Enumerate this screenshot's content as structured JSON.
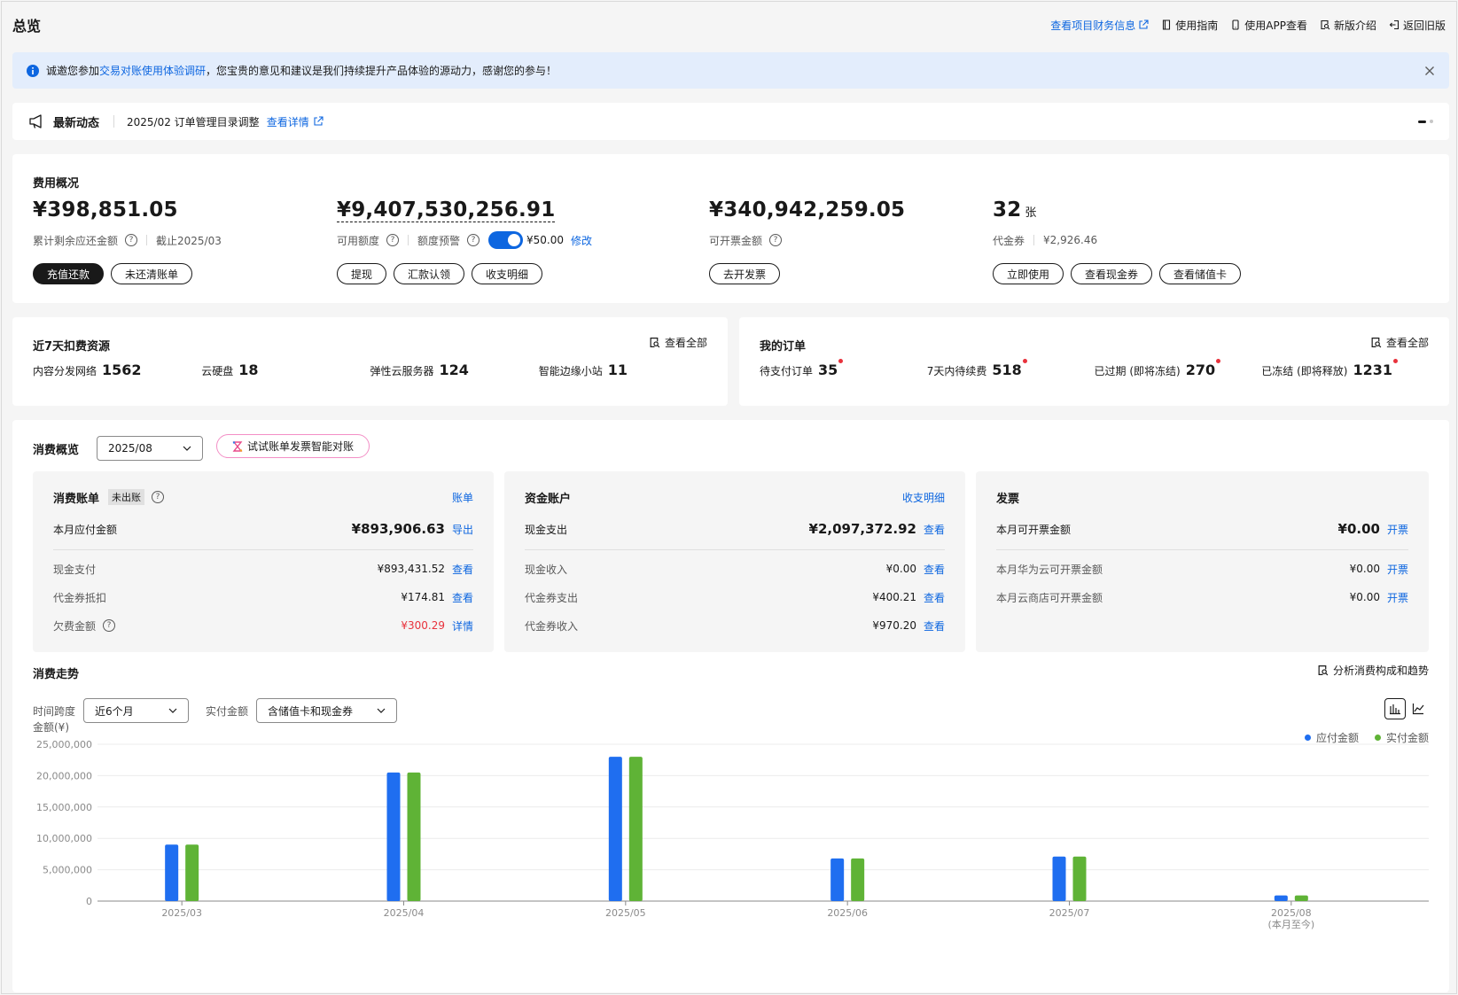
{
  "page": {
    "title": "总览"
  },
  "header_links": {
    "finance_info": "查看项目财务信息",
    "guide": "使用指南",
    "app": "使用APP查看",
    "new_intro": "新版介绍",
    "old_version": "返回旧版"
  },
  "notice": {
    "prefix": "诚邀您参加",
    "link": "交易对账使用体验调研",
    "suffix": "，您宝贵的意见和建议是我们持续提升产品体验的源动力，感谢您的参与！"
  },
  "news": {
    "title": "最新动态",
    "text": "2025/02 订单管理目录调整",
    "more": "查看详情"
  },
  "fee_overview": {
    "title": "费用概况",
    "balance": {
      "amount": "¥398,851.05",
      "label": "累计剩余应还金额",
      "date": "截止2025/03",
      "btn_recharge": "充值还款",
      "btn_unpaid": "未还清账单"
    },
    "credit": {
      "amount": "¥9,407,530,256.91",
      "label": "可用额度",
      "alert_label": "额度预警",
      "alert_value": "¥50.00",
      "edit": "修改",
      "alert_enabled": true,
      "btn_withdraw": "提现",
      "btn_remit": "汇款认领",
      "btn_detail": "收支明细"
    },
    "invoice": {
      "amount": "¥340,942,259.05",
      "label": "可开票金额",
      "btn_invoice": "去开发票"
    },
    "coupon": {
      "amount": "32",
      "unit": "张",
      "label": "代金券",
      "value": "¥2,926.46",
      "btn_use": "立即使用",
      "btn_cash": "查看现金券",
      "btn_card": "查看储值卡"
    }
  },
  "resources": {
    "title": "近7天扣费资源",
    "view_all": "查看全部",
    "items": [
      {
        "label": "内容分发网络",
        "value": "1562"
      },
      {
        "label": "云硬盘",
        "value": "18"
      },
      {
        "label": "弹性云服务器",
        "value": "124"
      },
      {
        "label": "智能边缘小站",
        "value": "11"
      }
    ]
  },
  "orders": {
    "title": "我的订单",
    "view_all": "查看全部",
    "items": [
      {
        "label": "待支付订单",
        "value": "35"
      },
      {
        "label": "7天内待续费",
        "value": "518"
      },
      {
        "label": "已过期 (即将冻结)",
        "value": "270"
      },
      {
        "label": "已冻结 (即将释放)",
        "value": "1231"
      }
    ]
  },
  "consumption": {
    "title": "消费概览",
    "month": "2025/08",
    "ai_button": "试试账单发票智能对账",
    "bill": {
      "title": "消费账单",
      "badge": "未出账",
      "link": "账单",
      "main_label": "本月应付金额",
      "main_amount": "¥893,906.63",
      "main_link": "导出",
      "rows": [
        {
          "label": "现金支付",
          "amount": "¥893,431.52",
          "link": "查看"
        },
        {
          "label": "代金券抵扣",
          "amount": "¥174.81",
          "link": "查看"
        },
        {
          "label": "欠费金额",
          "amount": "¥300.29",
          "link": "详情"
        }
      ]
    },
    "fund": {
      "title": "资金账户",
      "link": "收支明细",
      "main_label": "现金支出",
      "main_amount": "¥2,097,372.92",
      "main_link": "查看",
      "rows": [
        {
          "label": "现金收入",
          "amount": "¥0.00",
          "link": "查看"
        },
        {
          "label": "代金券支出",
          "amount": "¥400.21",
          "link": "查看"
        },
        {
          "label": "代金券收入",
          "amount": "¥970.20",
          "link": "查看"
        }
      ]
    },
    "invoice": {
      "title": "发票",
      "main_label": "本月可开票金额",
      "main_amount": "¥0.00",
      "main_link": "开票",
      "rows": [
        {
          "label": "本月华为云可开票金额",
          "amount": "¥0.00",
          "link": "开票"
        },
        {
          "label": "本月云商店可开票金额",
          "amount": "¥0.00",
          "link": "开票"
        }
      ]
    }
  },
  "trend": {
    "title": "消费走势",
    "analyze_link": "分析消费构成和趋势",
    "span_label": "时间跨度",
    "span_value": "近6个月",
    "paid_label": "实付金额",
    "paid_value": "含储值卡和现金券"
  },
  "colors": {
    "accent": "#0d66e0",
    "payable": "#1f6ef0",
    "paid": "#5fb336",
    "danger": "#e8323c"
  },
  "chart_data": {
    "type": "bar",
    "ylabel": "金额(¥)",
    "ylim": [
      0,
      25000000
    ],
    "yticks": [
      0,
      5000000,
      10000000,
      15000000,
      20000000,
      25000000
    ],
    "ytick_labels": [
      "0",
      "5,000,000",
      "10,000,000",
      "15,000,000",
      "20,000,000",
      "25,000,000"
    ],
    "categories": [
      "2025/03",
      "2025/04",
      "2025/05",
      "2025/06",
      "2025/07",
      "2025/08"
    ],
    "category_notes": [
      "",
      "",
      "",
      "",
      "",
      "(本月至今)"
    ],
    "legend_position": "top-right",
    "grid": true,
    "series": [
      {
        "name": "应付金额",
        "color": "#1f6ef0",
        "values": [
          9000000,
          20500000,
          23000000,
          6800000,
          7100000,
          900000
        ]
      },
      {
        "name": "实付金额",
        "color": "#5fb336",
        "values": [
          9000000,
          20500000,
          23000000,
          6800000,
          7100000,
          900000
        ]
      }
    ]
  }
}
